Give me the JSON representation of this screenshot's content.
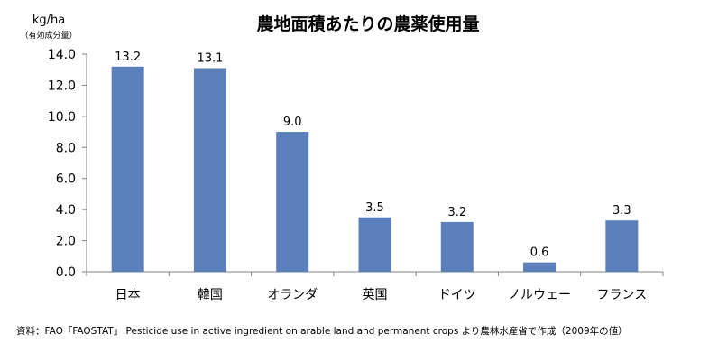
{
  "chart_data": {
    "type": "bar",
    "title": "農地面積あたりの農薬使用量",
    "ylabel": "kg/ha",
    "ylabel_note": "（有効成分量）",
    "xlabel": "",
    "categories": [
      "日本",
      "韓国",
      "オランダ",
      "英国",
      "ドイツ",
      "ノルウェー",
      "フランス"
    ],
    "values": [
      13.2,
      13.1,
      9.0,
      3.5,
      3.2,
      0.6,
      3.3
    ],
    "data_labels": [
      "13.2",
      "13.1",
      "9.0",
      "3.5",
      "3.2",
      "0.6",
      "3.3"
    ],
    "ylim": [
      0,
      14
    ],
    "y_ticks": [
      "0.0",
      "2.0",
      "4.0",
      "6.0",
      "8.0",
      "10.0",
      "12.0",
      "14.0"
    ],
    "bar_color": "#5b7fbb",
    "grid": false,
    "legend": "none"
  },
  "source_note": "資料：FAO「FAOSTAT」 Pesticide use in active ingredient on arable land and permanent crops より農林水産省で作成（2009年の値）"
}
